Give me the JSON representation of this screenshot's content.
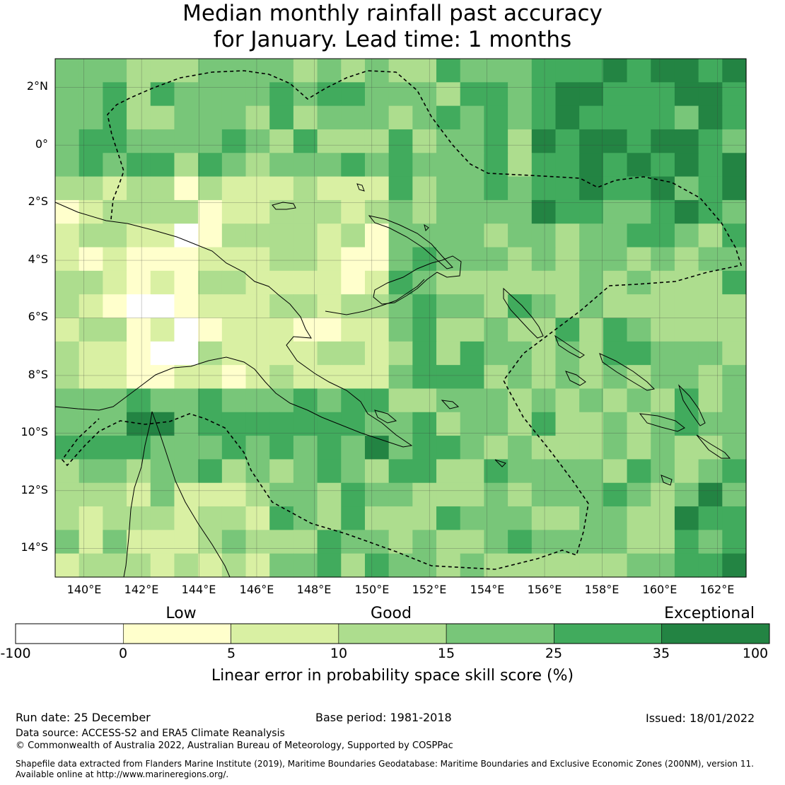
{
  "title": {
    "line1": "Median monthly rainfall past accuracy",
    "line2": "for January. Lead time: 1 months"
  },
  "map": {
    "lat_labels": [
      "2°N",
      "0°",
      "2°S",
      "4°S",
      "6°S",
      "8°S",
      "10°S",
      "12°S",
      "14°S"
    ],
    "lon_labels": [
      "140°E",
      "142°E",
      "144°E",
      "146°E",
      "148°E",
      "150°E",
      "152°E",
      "154°E",
      "156°E",
      "158°E",
      "160°E",
      "162°E"
    ],
    "extent": {
      "lon_min": 139.0,
      "lon_max": 163.0,
      "lat_min": -15.0,
      "lat_max": 3.0
    },
    "grid_resolution_deg": 0.833
  },
  "colorbar": {
    "categories": [
      "Low",
      "Good",
      "Exceptional"
    ],
    "ticks": [
      "-100",
      "0",
      "5",
      "10",
      "15",
      "25",
      "35",
      "100"
    ],
    "colors": [
      "#ffffff",
      "#ffffcc",
      "#d9f0a3",
      "#addd8e",
      "#78c679",
      "#41ab5d",
      "#238443"
    ],
    "title": "Linear error in probability space skill score (%)"
  },
  "footer": {
    "run_date": "Run date: 25 December",
    "base_period": "Base period: 1981-2018",
    "issued": "Issued: 18/01/2022",
    "data_source": "Data source: ACCESS-S2 and ERA5 Climate Reanalysis",
    "copyright": "© Commonwealth of Australia 2022, Australian Bureau of Meteorology, Supported by COSPPac",
    "shapefile_line1": "Shapefile data extracted from Flanders Marine Institute (2019), Maritime Boundaries Geodatabase: Maritime Boundaries and Exclusive Economic Zones (200NM), version 11.",
    "shapefile_line2": "Available online at http://www.marineregions.org/."
  }
}
